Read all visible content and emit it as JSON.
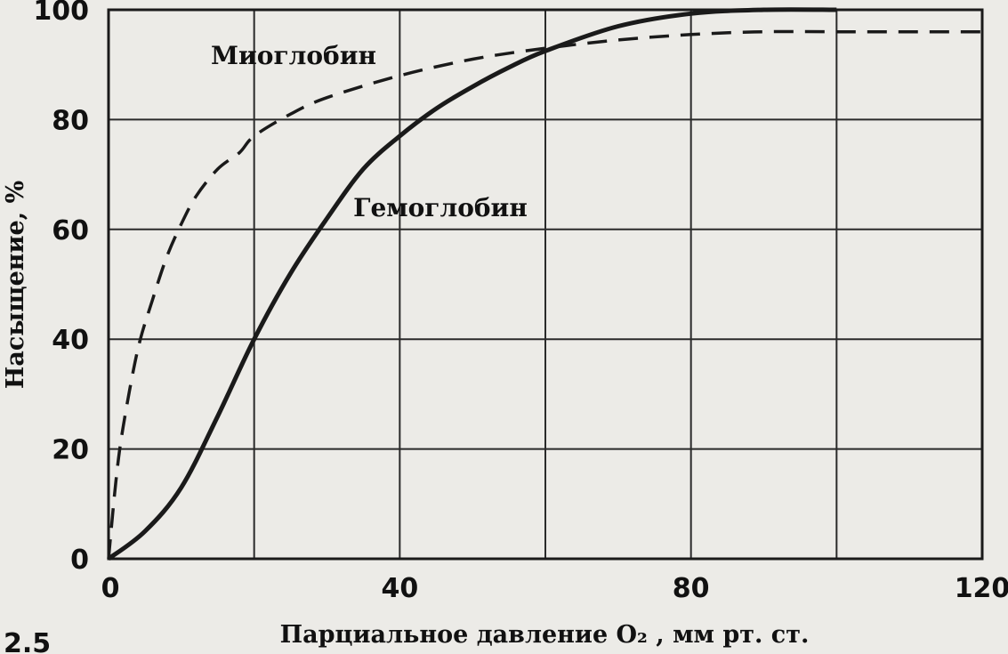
{
  "chart_data": {
    "type": "line",
    "figure_label": "2.5",
    "xlabel": "Парциальное давление O₂ , мм рт. ст.",
    "ylabel": "Насыщение, %",
    "xlim": [
      0,
      120
    ],
    "ylim": [
      0,
      100
    ],
    "x_ticks": [
      "0",
      "40",
      "80",
      "120"
    ],
    "y_ticks": [
      "0",
      "20",
      "40",
      "60",
      "80",
      "100"
    ],
    "x_grid": [
      0,
      20,
      40,
      60,
      80,
      100,
      120
    ],
    "y_grid": [
      0,
      20,
      40,
      60,
      80,
      100
    ],
    "grid": true,
    "series": [
      {
        "name": "Миоглобин",
        "style": "dashed",
        "color": "#1a1a1a",
        "x": [
          0,
          1,
          2,
          4,
          6,
          8,
          10,
          12,
          15,
          18,
          20,
          25,
          30,
          40,
          50,
          60,
          70,
          80,
          90,
          100,
          110,
          120
        ],
        "y": [
          0,
          14,
          24,
          38,
          47,
          55,
          61,
          66,
          71,
          74,
          77,
          81,
          84,
          88,
          91,
          93,
          94.5,
          95.5,
          96,
          96,
          96,
          96
        ]
      },
      {
        "name": "Гемоглобин",
        "style": "solid",
        "color": "#1a1a1a",
        "x": [
          0,
          5,
          10,
          15,
          20,
          25,
          30,
          35,
          40,
          45,
          50,
          55,
          60,
          70,
          80,
          90,
          100
        ],
        "y": [
          0,
          5,
          13,
          26,
          40,
          52,
          62,
          71,
          77,
          82,
          86,
          89.5,
          92.5,
          97,
          99.3,
          100,
          100
        ]
      }
    ],
    "annotations": [
      {
        "text": "Миоглобин",
        "x": 25,
        "y": 92
      },
      {
        "text": "Гемоглобин",
        "x": 55,
        "y": 63
      }
    ]
  }
}
